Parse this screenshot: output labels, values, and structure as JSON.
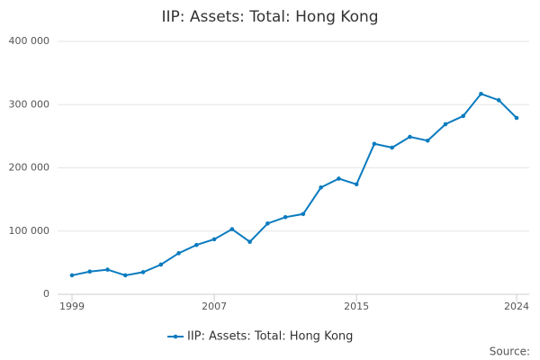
{
  "chart_data": {
    "type": "line",
    "title": "IIP: Assets: Total: Hong Kong",
    "x": [
      1999,
      2000,
      2001,
      2002,
      2003,
      2004,
      2005,
      2006,
      2007,
      2008,
      2009,
      2010,
      2011,
      2012,
      2013,
      2014,
      2015,
      2016,
      2017,
      2018,
      2019,
      2020,
      2021,
      2022,
      2023,
      2024
    ],
    "series": [
      {
        "name": "IIP: Assets: Total: Hong Kong",
        "color": "#0b7bbf",
        "values": [
          30000,
          36000,
          39000,
          30000,
          35000,
          47000,
          65000,
          78000,
          87000,
          103000,
          83000,
          112000,
          122000,
          127000,
          169000,
          183000,
          174000,
          238000,
          232000,
          249000,
          243000,
          269000,
          282000,
          317000,
          307000,
          279000
        ]
      }
    ],
    "xlim": [
      1999,
      2024
    ],
    "xticks": [
      1999,
      2007,
      2015,
      2024
    ],
    "ylim": [
      0,
      400000
    ],
    "yticks": [
      0,
      {
        "value": 100000,
        "label": "100 000"
      },
      {
        "value": 200000,
        "label": "200 000"
      },
      {
        "value": 300000,
        "label": "300 000"
      },
      {
        "value": 400000,
        "label": "400 000"
      }
    ],
    "grid": true,
    "legend": "bottom",
    "source": "Source:"
  }
}
